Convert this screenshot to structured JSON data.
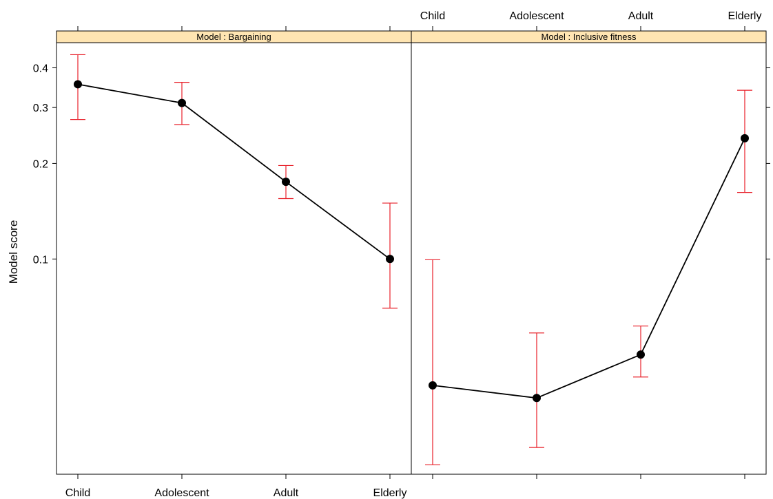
{
  "chart_data": {
    "type": "line",
    "ylabel": "Model score",
    "y_scale": "log",
    "ylim": [
      0.021,
      0.48
    ],
    "y_ticks": [
      "0.1",
      "0.2",
      "0.3",
      "0.4"
    ],
    "categories": [
      "Child",
      "Adolescent",
      "Adult",
      "Elderly"
    ],
    "strip_fill": "#ffe5b2",
    "point_color": "#000000",
    "errorbar_color": "#e8202a",
    "panels": [
      {
        "strip": "Model : Bargaining",
        "values": [
          0.355,
          0.31,
          0.175,
          0.1
        ],
        "lower": [
          0.275,
          0.265,
          0.155,
          0.07
        ],
        "upper": [
          0.44,
          0.36,
          0.197,
          0.15
        ]
      },
      {
        "strip": "Model : Inclusive fitness",
        "values": [
          0.04,
          0.0365,
          0.05,
          0.24
        ],
        "lower": [
          0.0225,
          0.0255,
          0.0425,
          0.162
        ],
        "upper": [
          0.0995,
          0.0585,
          0.0615,
          0.34
        ]
      }
    ]
  }
}
